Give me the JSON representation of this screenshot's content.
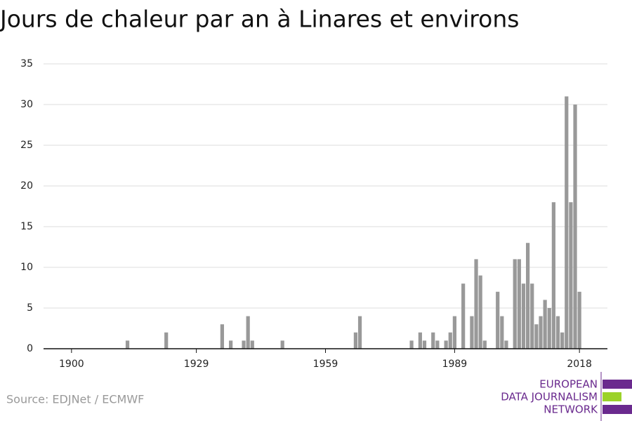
{
  "chart_data": {
    "type": "bar",
    "title": "Jours de chaleur par an à Linares et environs",
    "source": "Source: EDJNet / ECMWF",
    "logo": [
      "EUROPEAN",
      "DATA JOURNALISM",
      "NETWORK"
    ],
    "x": [
      1913,
      1922,
      1935,
      1937,
      1940,
      1941,
      1942,
      1949,
      1966,
      1967,
      1979,
      1981,
      1982,
      1984,
      1985,
      1987,
      1988,
      1989,
      1991,
      1993,
      1994,
      1995,
      1996,
      1999,
      2000,
      2001,
      2003,
      2004,
      2005,
      2006,
      2007,
      2008,
      2009,
      2010,
      2011,
      2012,
      2013,
      2014,
      2015,
      2016,
      2017,
      2018
    ],
    "values": [
      1,
      2,
      3,
      1,
      1,
      4,
      1,
      1,
      2,
      4,
      1,
      2,
      1,
      2,
      1,
      1,
      2,
      4,
      8,
      4,
      11,
      9,
      1,
      7,
      4,
      1,
      11,
      11,
      8,
      13,
      8,
      3,
      4,
      6,
      5,
      18,
      4,
      2,
      31,
      18,
      30,
      7
    ],
    "color": "#999999",
    "xlim": [
      1893.5,
      2024.5
    ],
    "xticks": [
      1900,
      1929,
      1959,
      1989,
      2018
    ],
    "ylim": [
      0,
      35
    ],
    "yticks": [
      0,
      5,
      10,
      15,
      20,
      25,
      30,
      35
    ],
    "grid": true
  }
}
